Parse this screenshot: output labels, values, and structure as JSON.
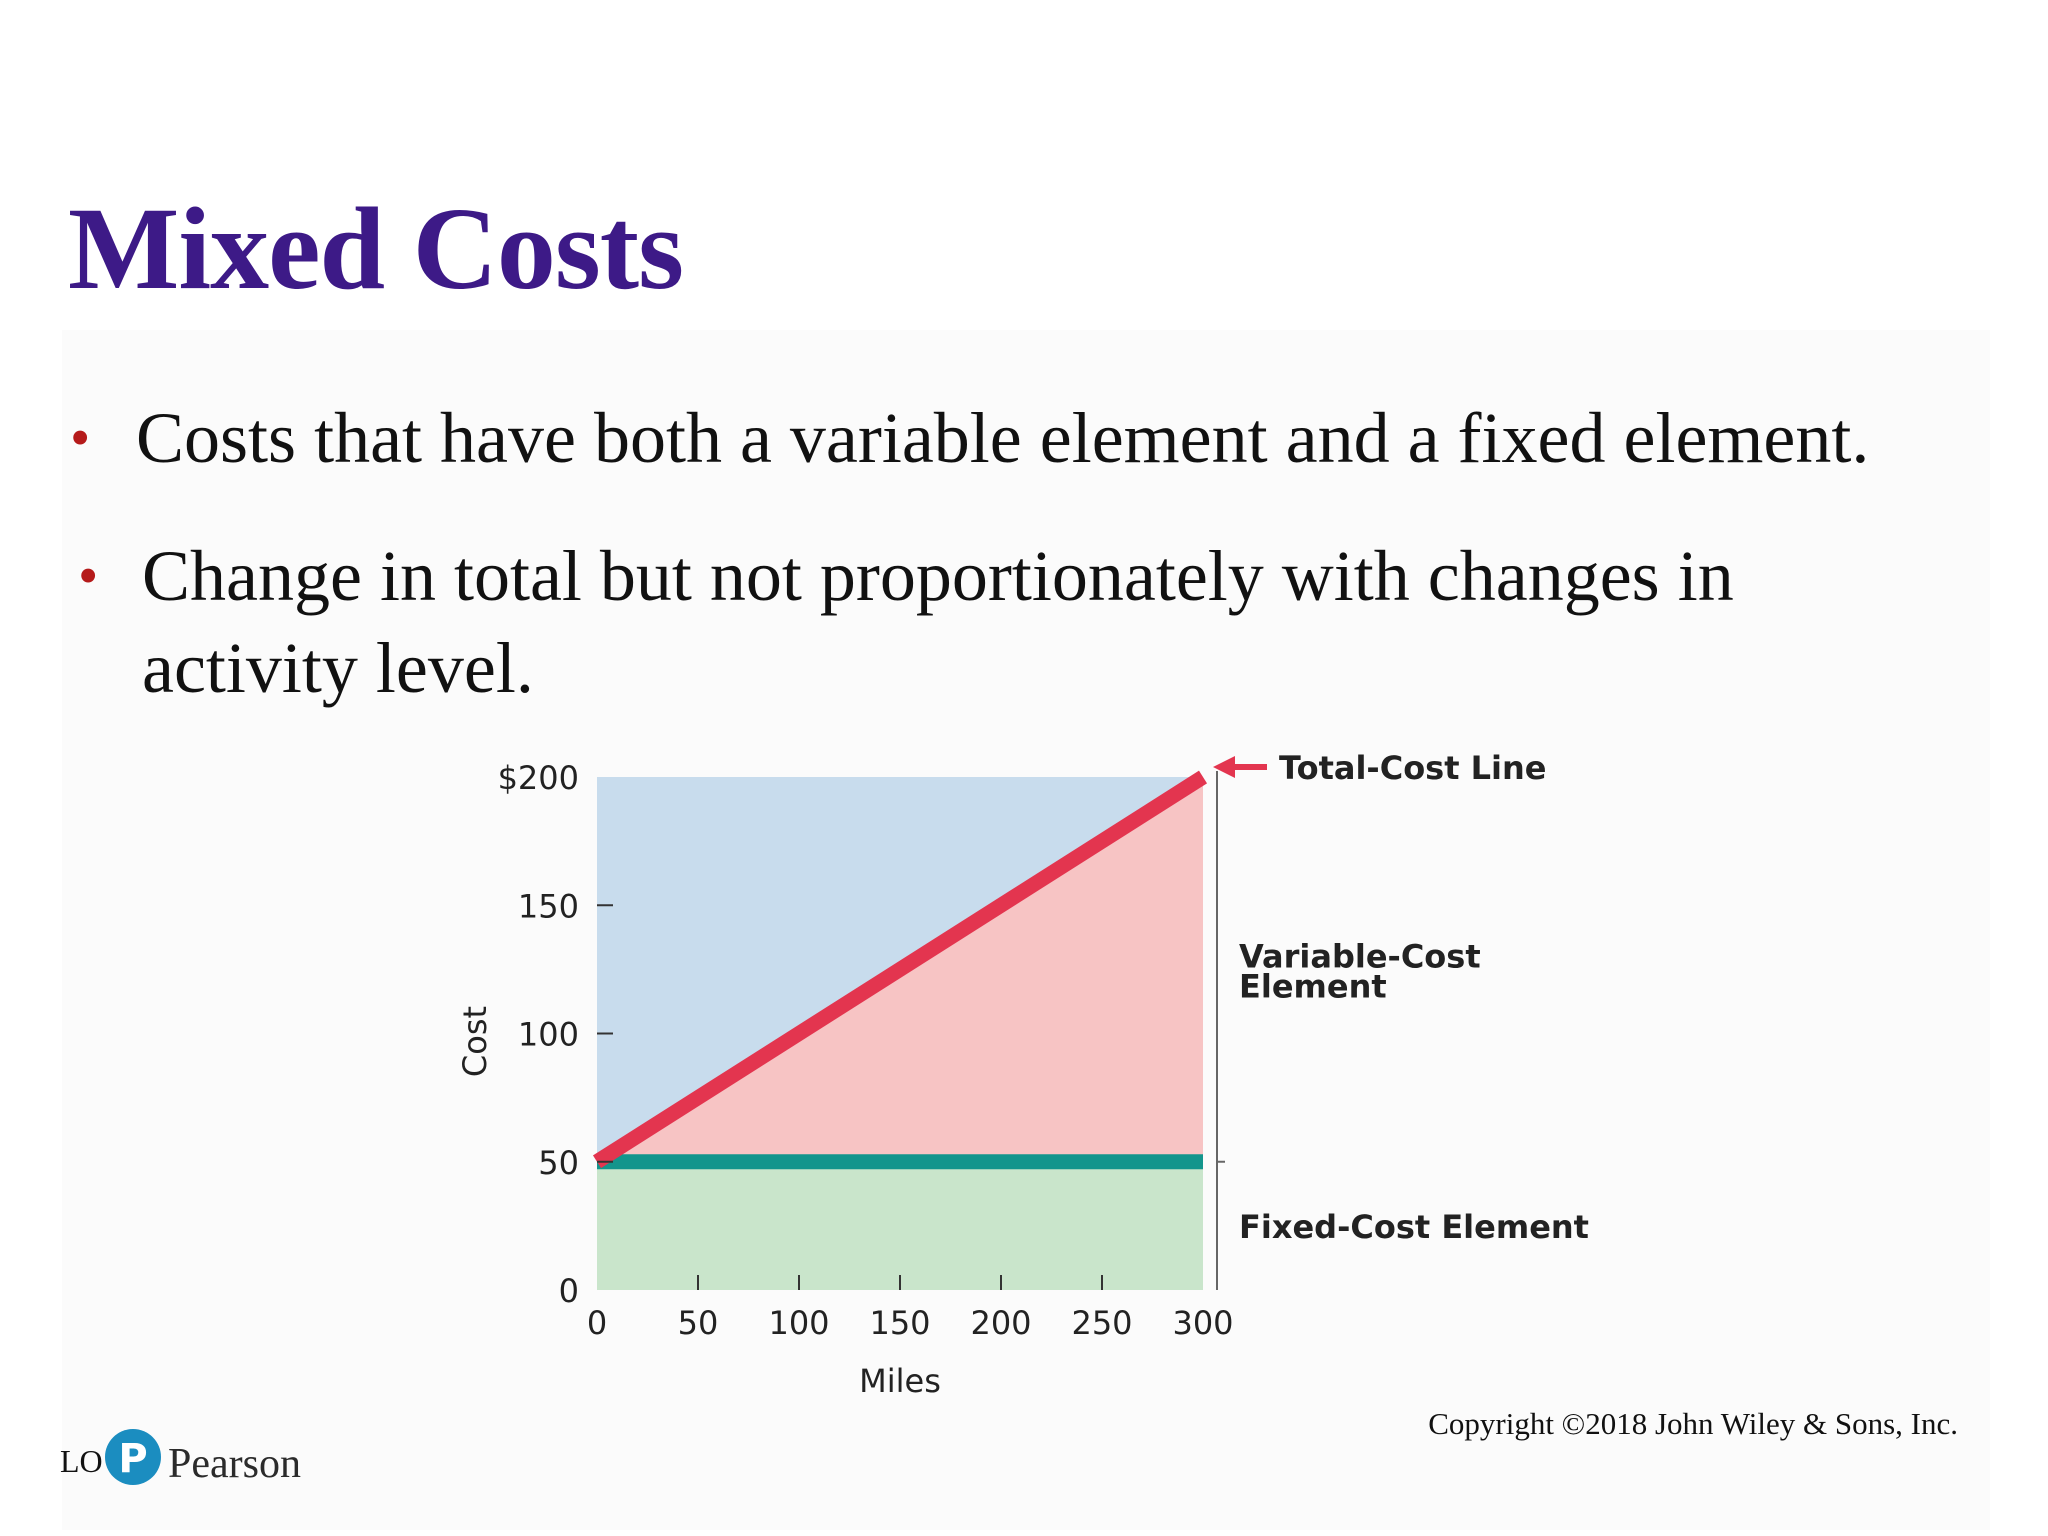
{
  "slide": {
    "title": "Mixed Costs",
    "bullets": [
      "Costs that have both a variable element and a fixed element.",
      "Change in total but  not proportionately with changes in activity level."
    ],
    "copyright": "Copyright ©2018 John Wiley & Sons, Inc.",
    "lo_label": "LO 1",
    "logo_text": "Pearson"
  },
  "colors": {
    "title": "#3d1a87",
    "bullet_dot": "#b51a1a",
    "variable_area": "#f7c4c4",
    "fixed_area": "#c9e5cb",
    "background_area": "#c8dced",
    "total_cost_line": "#e3354f",
    "fixed_cost_line": "#13958c",
    "logo": "#1b8dc0"
  },
  "chart_data": {
    "type": "area",
    "xlabel": "Miles",
    "ylabel": "Cost",
    "xlim": [
      0,
      300
    ],
    "ylim": [
      0,
      200
    ],
    "x_ticks": [
      0,
      50,
      100,
      150,
      200,
      250,
      300
    ],
    "x_tick_labels": [
      "0",
      "50",
      "100",
      "150",
      "200",
      "250",
      "300"
    ],
    "y_ticks": [
      0,
      50,
      100,
      150,
      200
    ],
    "y_tick_labels": [
      "0",
      "50",
      "100",
      "150",
      "$200"
    ],
    "series": [
      {
        "name": "Total-Cost Line",
        "x": [
          0,
          300
        ],
        "y": [
          50,
          200
        ]
      },
      {
        "name": "Fixed-Cost Element",
        "x": [
          0,
          300
        ],
        "y": [
          50,
          50
        ]
      }
    ],
    "annotations": {
      "total_cost": "Total-Cost Line",
      "variable_cost": [
        "Variable-Cost",
        "Element"
      ],
      "fixed_cost": "Fixed-Cost Element"
    }
  }
}
